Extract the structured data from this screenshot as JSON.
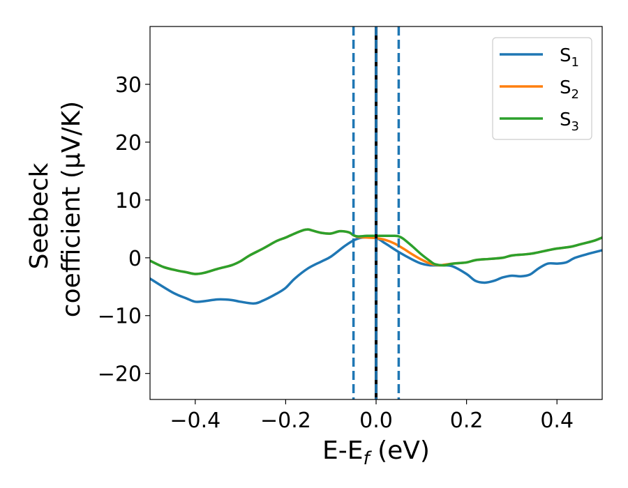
{
  "chart_data": {
    "type": "line",
    "xlabel": "E-E",
    "xlabel_sub": "f",
    "xlabel_unit": " (eV)",
    "ylabel_line1": "Seebeck",
    "ylabel_line2": "coefficient  (μV/K)",
    "xlim": [
      -0.5,
      0.5
    ],
    "ylim": [
      -24.5,
      40
    ],
    "xticks": [
      -0.4,
      -0.2,
      0.0,
      0.2,
      0.4
    ],
    "xtick_labels": [
      "−0.4",
      "−0.2",
      "0.0",
      "0.2",
      "0.4"
    ],
    "yticks": [
      -20,
      -10,
      0,
      10,
      20,
      30
    ],
    "ytick_labels": [
      "−20",
      "−10",
      "0",
      "10",
      "20",
      "30"
    ],
    "grid": false,
    "legend_position": "top-right",
    "vlines": [
      {
        "x": -0.05,
        "style": "dashed",
        "color": "#1f77b4"
      },
      {
        "x": 0.05,
        "style": "dashed",
        "color": "#1f77b4"
      },
      {
        "x": 0.0,
        "style": "solid",
        "color": "#000000"
      },
      {
        "x": 0.0,
        "style": "dashed",
        "color": "#1f77b4"
      }
    ],
    "series": [
      {
        "name": "S",
        "sub": "1",
        "color": "#1f77b4",
        "x": [
          -0.5,
          -0.45,
          -0.42,
          -0.4,
          -0.38,
          -0.35,
          -0.32,
          -0.3,
          -0.27,
          -0.25,
          -0.22,
          -0.2,
          -0.18,
          -0.15,
          -0.12,
          -0.1,
          -0.07,
          -0.05,
          -0.03,
          0.0,
          0.02,
          0.05,
          0.08,
          0.1,
          0.12,
          0.15,
          0.17,
          0.2,
          0.22,
          0.24,
          0.26,
          0.28,
          0.3,
          0.32,
          0.34,
          0.36,
          0.38,
          0.4,
          0.42,
          0.44,
          0.47,
          0.5
        ],
        "y": [
          -3.6,
          -6.0,
          -7.0,
          -7.6,
          -7.5,
          -7.2,
          -7.3,
          -7.6,
          -7.9,
          -7.4,
          -6.2,
          -5.2,
          -3.6,
          -1.8,
          -0.6,
          0.2,
          2.0,
          3.0,
          3.5,
          3.4,
          2.5,
          1.0,
          -0.3,
          -1.0,
          -1.3,
          -1.3,
          -1.5,
          -2.8,
          -4.0,
          -4.3,
          -4.0,
          -3.4,
          -3.1,
          -3.2,
          -2.9,
          -1.8,
          -1.0,
          -1.0,
          -0.8,
          0.0,
          0.7,
          1.3
        ]
      },
      {
        "name": "S",
        "sub": "2",
        "color": "#ff7f0e",
        "x": [
          -0.5,
          -0.47,
          -0.44,
          -0.42,
          -0.4,
          -0.38,
          -0.35,
          -0.32,
          -0.3,
          -0.28,
          -0.25,
          -0.22,
          -0.2,
          -0.18,
          -0.16,
          -0.15,
          -0.14,
          -0.12,
          -0.1,
          -0.08,
          -0.06,
          -0.05,
          -0.04,
          -0.02,
          0.0,
          0.02,
          0.04,
          0.06,
          0.08,
          0.1,
          0.12,
          0.14,
          0.15,
          0.17,
          0.2,
          0.22,
          0.25,
          0.28,
          0.3,
          0.33,
          0.35,
          0.38,
          0.4,
          0.43,
          0.45,
          0.48,
          0.5
        ],
        "y": [
          -0.5,
          -1.6,
          -2.2,
          -2.5,
          -2.8,
          -2.6,
          -1.9,
          -1.3,
          -0.6,
          0.4,
          1.6,
          2.9,
          3.5,
          4.2,
          4.8,
          4.9,
          4.7,
          4.3,
          4.2,
          4.6,
          4.4,
          3.9,
          3.6,
          3.5,
          3.4,
          3.1,
          2.5,
          1.6,
          0.6,
          -0.3,
          -1.0,
          -1.3,
          -1.2,
          -1.0,
          -0.8,
          -0.4,
          -0.2,
          0.0,
          0.4,
          0.6,
          0.8,
          1.3,
          1.6,
          1.9,
          2.3,
          2.9,
          3.5
        ]
      },
      {
        "name": "S",
        "sub": "3",
        "color": "#2ca02c",
        "x": [
          -0.5,
          -0.47,
          -0.44,
          -0.42,
          -0.4,
          -0.38,
          -0.35,
          -0.32,
          -0.3,
          -0.28,
          -0.25,
          -0.22,
          -0.2,
          -0.18,
          -0.16,
          -0.15,
          -0.14,
          -0.12,
          -0.1,
          -0.08,
          -0.06,
          -0.05,
          -0.04,
          -0.02,
          0.0,
          0.02,
          0.04,
          0.05,
          0.06,
          0.08,
          0.1,
          0.12,
          0.13,
          0.15,
          0.17,
          0.2,
          0.22,
          0.25,
          0.28,
          0.3,
          0.33,
          0.35,
          0.38,
          0.4,
          0.43,
          0.45,
          0.48,
          0.5
        ],
        "y": [
          -0.5,
          -1.6,
          -2.2,
          -2.5,
          -2.8,
          -2.6,
          -1.9,
          -1.3,
          -0.6,
          0.4,
          1.6,
          2.9,
          3.5,
          4.2,
          4.8,
          4.9,
          4.7,
          4.3,
          4.2,
          4.6,
          4.4,
          3.9,
          3.7,
          3.8,
          3.8,
          3.8,
          3.8,
          3.7,
          3.3,
          2.0,
          0.6,
          -0.6,
          -1.1,
          -1.3,
          -1.0,
          -0.8,
          -0.4,
          -0.2,
          0.0,
          0.4,
          0.6,
          0.8,
          1.3,
          1.6,
          1.9,
          2.3,
          2.9,
          3.5
        ]
      }
    ]
  }
}
